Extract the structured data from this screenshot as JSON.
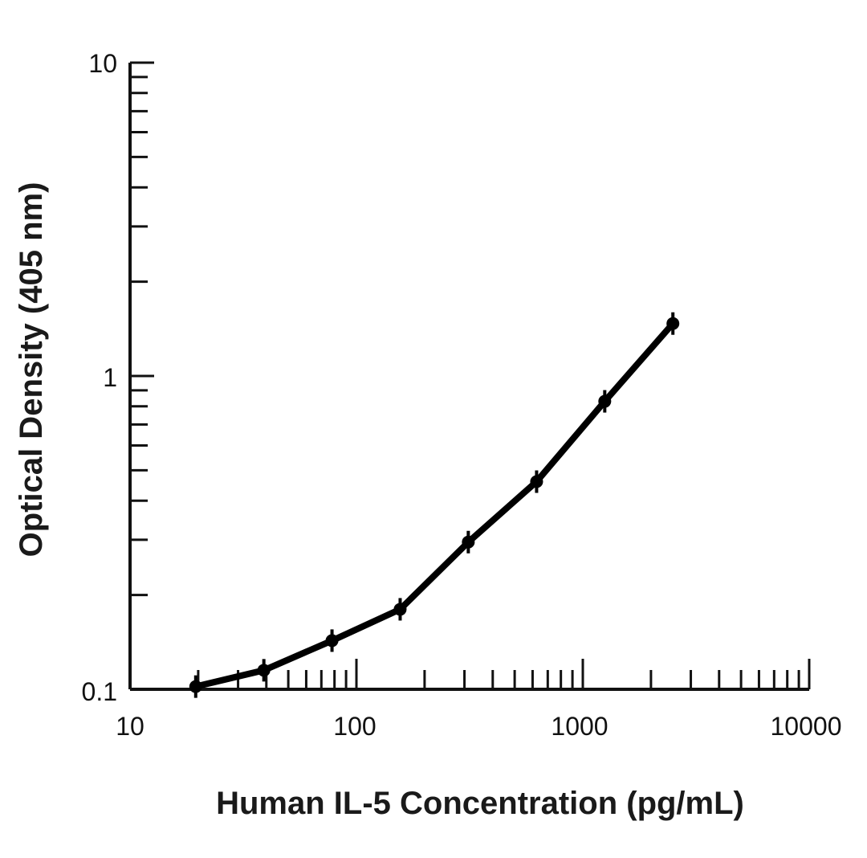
{
  "chart_data": {
    "type": "line",
    "title": "",
    "xlabel": "Human IL-5 Concentration (pg/mL)",
    "ylabel": "Optical Density (405 nm)",
    "x_scale": "log",
    "y_scale": "log",
    "xlim": [
      10,
      10000
    ],
    "ylim": [
      0.1,
      10
    ],
    "x_ticks": [
      "10",
      "100",
      "1000",
      "10000"
    ],
    "y_ticks": [
      "0.1",
      "1",
      "10"
    ],
    "grid": false,
    "legend": "none",
    "line_color": "#000000",
    "series": [
      {
        "x": [
          19.5,
          39,
          78,
          156,
          312,
          625,
          1250,
          2500
        ],
        "y": [
          0.102,
          0.115,
          0.143,
          0.18,
          0.295,
          0.46,
          0.83,
          1.47
        ]
      }
    ]
  }
}
